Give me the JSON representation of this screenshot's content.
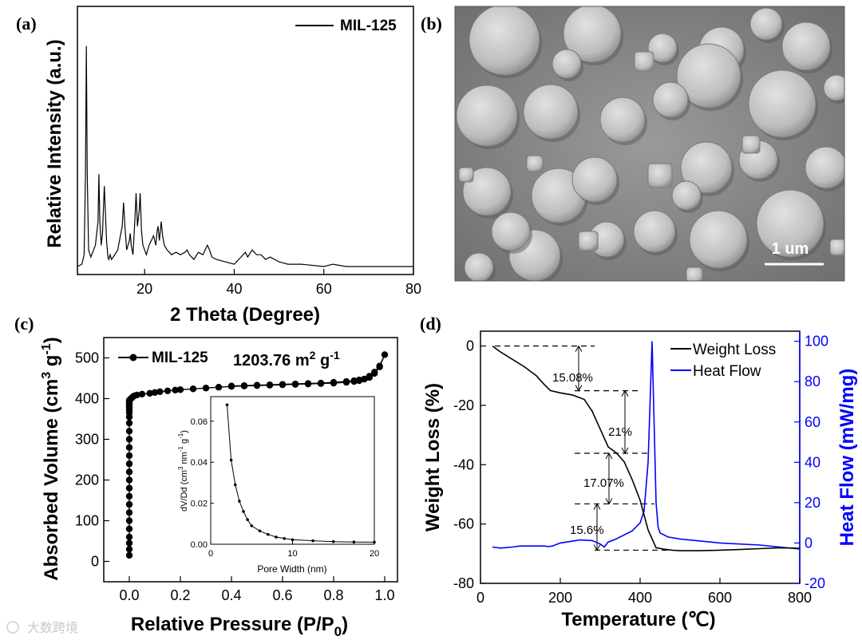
{
  "panels": {
    "a": {
      "label": "(a)",
      "chart_data": {
        "type": "line",
        "xlabel": "2 Theta (Degree)",
        "ylabel": "Relative Intensity (a.u.)",
        "xlim": [
          5,
          80
        ],
        "xticks": [
          20,
          40,
          60,
          80
        ],
        "legend": "top-right",
        "series": [
          {
            "name": "MIL-125",
            "color": "#000000",
            "x": [
              5.0,
              6.0,
              6.5,
              6.8,
              7.0,
              7.2,
              7.5,
              8.0,
              9.0,
              9.6,
              9.8,
              10.0,
              10.3,
              10.6,
              11.0,
              11.5,
              11.8,
              12.0,
              12.3,
              12.6,
              13.0,
              14.0,
              15.0,
              15.3,
              15.6,
              16.0,
              16.6,
              16.8,
              17.0,
              17.4,
              17.8,
              18.1,
              18.4,
              18.8,
              19.0,
              19.3,
              19.6,
              20.0,
              20.4,
              21.0,
              22.0,
              22.5,
              22.8,
              23.0,
              23.3,
              23.7,
              24.0,
              24.4,
              25.0,
              26.0,
              27.0,
              28.0,
              29.0,
              29.5,
              30.0,
              31.0,
              32.0,
              33.0,
              34.0,
              34.5,
              35.0,
              36.0,
              38.0,
              40.0,
              41.5,
              42.5,
              43.0,
              44.0,
              45.0,
              46.0,
              47.0,
              48.0,
              49.0,
              50.0,
              52.0,
              55.0,
              60.0,
              62.0,
              65.0,
              70.0,
              75.0,
              80.0
            ],
            "values": [
              0.01,
              0.02,
              0.06,
              0.4,
              0.94,
              0.4,
              0.08,
              0.05,
              0.1,
              0.2,
              0.4,
              0.2,
              0.1,
              0.15,
              0.35,
              0.12,
              0.05,
              0.04,
              0.06,
              0.04,
              0.05,
              0.08,
              0.18,
              0.28,
              0.18,
              0.08,
              0.12,
              0.15,
              0.1,
              0.06,
              0.2,
              0.32,
              0.18,
              0.25,
              0.32,
              0.16,
              0.1,
              0.08,
              0.06,
              0.1,
              0.14,
              0.1,
              0.16,
              0.18,
              0.12,
              0.2,
              0.14,
              0.1,
              0.08,
              0.06,
              0.07,
              0.06,
              0.07,
              0.08,
              0.06,
              0.04,
              0.07,
              0.06,
              0.1,
              0.08,
              0.05,
              0.04,
              0.03,
              0.02,
              0.05,
              0.07,
              0.05,
              0.08,
              0.06,
              0.06,
              0.04,
              0.05,
              0.04,
              0.03,
              0.02,
              0.02,
              0.01,
              0.02,
              0.01,
              0.01,
              0.01,
              0.01
            ]
          }
        ]
      }
    },
    "b": {
      "label": "(b)",
      "scalebar": "1 um"
    },
    "c": {
      "label": "(c)",
      "annotation_main": "1203.76 m",
      "annotation_sup": "2",
      "annotation_tail": " g",
      "annotation_sup2": "-1",
      "ylabel_main": "Absorbed Volume (cm",
      "ylabel_sup": "3",
      "ylabel_mid": " g",
      "ylabel_sup2": "-1",
      "ylabel_end": ")",
      "xlabel_main": "Relative Pressure (P/P",
      "xlabel_sub": "0",
      "xlabel_end": ")",
      "chart_data": {
        "type": "scatter",
        "xlim": [
          -0.1,
          1.05
        ],
        "ylim": [
          -50,
          550
        ],
        "xticks": [
          0.0,
          0.2,
          0.4,
          0.6,
          0.8,
          1.0
        ],
        "yticks": [
          0,
          100,
          200,
          300,
          400,
          500
        ],
        "legend": "top-left",
        "series": [
          {
            "name": "MIL-125",
            "color": "#000000",
            "x": [
              0.0,
              0.0,
              0.0,
              0.0,
              0.0,
              0.0,
              0.0,
              0.0,
              0.0,
              0.0,
              0.0,
              0.0,
              0.0,
              0.0,
              0.0,
              0.0,
              0.0,
              0.0,
              0.0,
              0.0,
              0.0,
              0.0,
              0.0,
              0.0,
              0.0,
              0.0,
              0.0,
              0.005,
              0.01,
              0.015,
              0.02,
              0.03,
              0.05,
              0.08,
              0.1,
              0.12,
              0.15,
              0.18,
              0.2,
              0.25,
              0.3,
              0.35,
              0.4,
              0.45,
              0.5,
              0.55,
              0.6,
              0.65,
              0.7,
              0.75,
              0.8,
              0.85,
              0.88,
              0.9,
              0.92,
              0.94,
              0.96,
              0.98,
              1.0,
              0.98,
              0.96,
              0.94,
              0.92,
              0.9,
              0.88,
              0.85,
              0.8,
              0.75,
              0.7,
              0.65,
              0.6,
              0.55,
              0.5,
              0.45,
              0.4
            ],
            "values": [
              15,
              30,
              45,
              60,
              80,
              100,
              120,
              140,
              160,
              180,
              200,
              220,
              240,
              260,
              280,
              300,
              320,
              340,
              355,
              365,
              372,
              378,
              383,
              387,
              390,
              393,
              396,
              399,
              402,
              405,
              407,
              409,
              411,
              413,
              415,
              417,
              419,
              421,
              422,
              424,
              426,
              428,
              430,
              431,
              432,
              433,
              434,
              435,
              436,
              437,
              438,
              440,
              442,
              444,
              448,
              455,
              465,
              480,
              508,
              478,
              462,
              452,
              448,
              446,
              444,
              442,
              440,
              438,
              437,
              436,
              435,
              434,
              433,
              432,
              431
            ]
          }
        ],
        "inset": {
          "type": "line",
          "xlabel": "Pore Width (nm)",
          "ylabel_main": "dV/Dd (cm",
          "ylabel_sup": "3",
          "ylabel_mid": " nm",
          "ylabel_sup2": "-1",
          "ylabel_mid2": " g",
          "ylabel_sup3": "-1",
          "ylabel_end": ")",
          "xlim": [
            0,
            20
          ],
          "ylim": [
            0,
            0.072
          ],
          "xticks": [
            0,
            10,
            20
          ],
          "yticks": [
            0.0,
            0.02,
            0.04,
            0.06
          ],
          "ytick_labels": [
            "0.00",
            "0.02",
            "0.04",
            "0.06"
          ],
          "x": [
            2.0,
            2.5,
            3.0,
            3.5,
            4.0,
            4.5,
            5.0,
            6.0,
            7.0,
            8.0,
            9.0,
            10.0,
            12.5,
            15.0,
            17.5,
            20.0
          ],
          "values": [
            0.068,
            0.041,
            0.029,
            0.021,
            0.016,
            0.012,
            0.009,
            0.0065,
            0.0048,
            0.0035,
            0.0028,
            0.0022,
            0.0017,
            0.0013,
            0.0011,
            0.001
          ]
        }
      }
    },
    "d": {
      "label": "(d)",
      "chart_data": {
        "type": "line",
        "xlabel": "Temperature (℃)",
        "ylabel_left": "Weight Loss (%)",
        "ylabel_right": "Heat Flow (mW/mg)",
        "xlim": [
          0,
          800
        ],
        "ylim_left": [
          -80,
          5
        ],
        "ylim_right": [
          -20,
          105
        ],
        "xticks": [
          0,
          200,
          400,
          600,
          800
        ],
        "yticks_left": [
          0,
          -20,
          -40,
          -60,
          -80
        ],
        "yticks_right": [
          -20,
          0,
          20,
          40,
          60,
          80,
          100
        ],
        "legend": "top-right",
        "series": [
          {
            "name": "Weight Loss",
            "color": "#000000",
            "axis": "left",
            "x": [
              30,
              50,
              80,
              110,
              140,
              160,
              175,
              200,
              230,
              260,
              280,
              300,
              320,
              340,
              360,
              380,
              400,
              420,
              440,
              460,
              480,
              500,
              550,
              600,
              650,
              700,
              750,
              800
            ],
            "values": [
              0,
              -2,
              -4.5,
              -7,
              -10,
              -13,
              -15,
              -15.8,
              -16.5,
              -18,
              -22,
              -28,
              -34,
              -36,
              -39,
              -45,
              -52,
              -62,
              -68,
              -68.5,
              -68.8,
              -69,
              -69,
              -68.8,
              -68.6,
              -68.3,
              -68,
              -68.2
            ]
          },
          {
            "name": "Heat Flow",
            "color": "#0000ff",
            "axis": "right",
            "x": [
              30,
              50,
              80,
              100,
              150,
              160,
              170,
              180,
              200,
              250,
              280,
              300,
              310,
              320,
              340,
              360,
              380,
              400,
              410,
              420,
              425,
              430,
              435,
              440,
              445,
              450,
              470,
              500,
              600,
              700,
              800
            ],
            "values": [
              -2,
              -2.5,
              -2,
              -1.5,
              -1.5,
              -1.5,
              -1.8,
              -1.5,
              0,
              1.5,
              1.2,
              -0.5,
              -2,
              0.5,
              2,
              4,
              6,
              10,
              16,
              40,
              70,
              100,
              60,
              20,
              8,
              5,
              3,
              2,
              0,
              -1,
              -3
            ]
          }
        ],
        "annotations": [
          "15.08%",
          "21%",
          "17.07%",
          "15.6%"
        ]
      }
    }
  },
  "watermark": "大数跨境"
}
